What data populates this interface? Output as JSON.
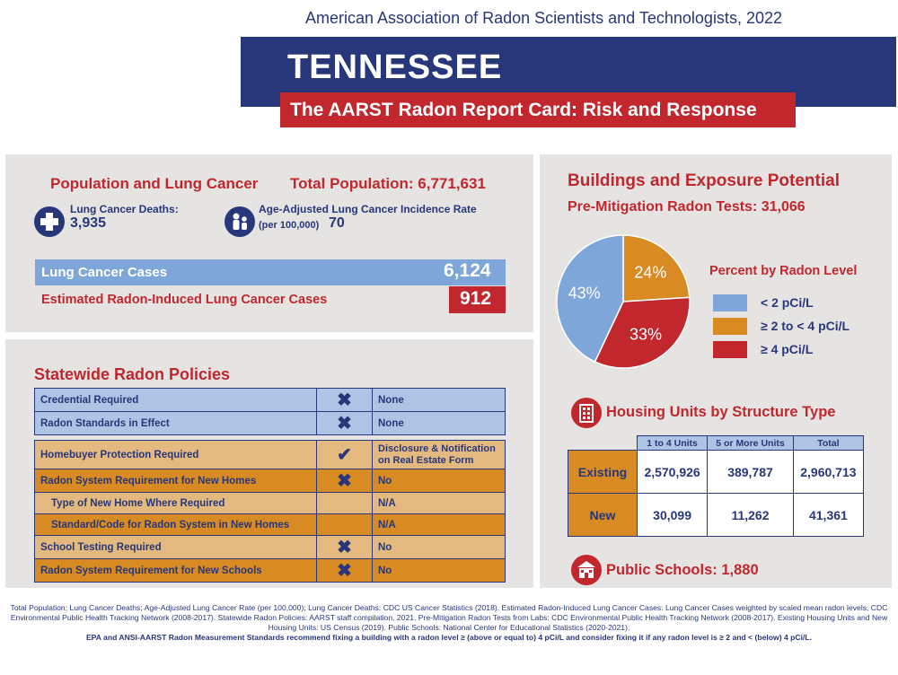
{
  "header": {
    "org": "American Association of Radon Scientists and Technologists, 2022",
    "state": "TENNESSEE",
    "subtitle": "The AARST Radon Report Card: Risk and Response"
  },
  "population": {
    "heading": "Population and Lung Cancer",
    "total_label": "Total Population: 6,771,631",
    "deaths_label": "Lung Cancer Deaths:",
    "deaths_value": "3,935",
    "incidence_label": "Age-Adjusted Lung Cancer Incidence Rate",
    "incidence_sub": "(per 100,000)",
    "incidence_value": "70",
    "cases_label": "Lung Cancer Cases",
    "cases_value": "6,124",
    "radon_cases_label": "Estimated Radon-Induced Lung Cancer Cases",
    "radon_cases_value": "912"
  },
  "policies": {
    "heading": "Statewide Radon Policies",
    "rows": [
      {
        "label": "Credential Required",
        "mark": "✖",
        "value": "None"
      },
      {
        "label": "Radon Standards in Effect",
        "mark": "✖",
        "value": "None"
      },
      {
        "label": "Homebuyer Protection Required",
        "mark": "✔",
        "value": "Disclosure & Notification on Real Estate Form"
      },
      {
        "label": "Radon System Requirement for New Homes",
        "mark": "✖",
        "value": "No"
      },
      {
        "label": "Type of New Home Where Required",
        "mark": "",
        "value": "N/A"
      },
      {
        "label": "Standard/Code for Radon System in New Homes",
        "mark": "",
        "value": "N/A"
      },
      {
        "label": "School Testing Required",
        "mark": "✖",
        "value": "No"
      },
      {
        "label": "Radon System Requirement for New Schools",
        "mark": "✖",
        "value": "No"
      }
    ]
  },
  "buildings": {
    "heading": "Buildings and Exposure Potential",
    "tests_label": "Pre-Mitigation Radon Tests: 31,066",
    "legend_title": "Percent by Radon Level",
    "housing_heading": "Housing Units by Structure Type",
    "housing_cols": [
      "1 to 4 Units",
      "5 or More Units",
      "Total"
    ],
    "housing_rows": [
      {
        "label": "Existing",
        "values": [
          "2,570,926",
          "389,787",
          "2,960,713"
        ]
      },
      {
        "label": "New",
        "values": [
          "30,099",
          "11,262",
          "41,361"
        ]
      }
    ],
    "schools_label": "Public Schools: 1,880"
  },
  "chart_data": {
    "type": "pie",
    "title": "Percent by Radon Level",
    "categories": [
      "< 2 pCi/L",
      "≥ 2 to < 4 pCi/L",
      "≥ 4 pCi/L"
    ],
    "values": [
      43,
      24,
      33
    ],
    "labels": [
      "43%",
      "24%",
      "33%"
    ],
    "colors": [
      "#7ea6d8",
      "#d88b23",
      "#c1272d"
    ]
  },
  "footer": {
    "sources": "Total Population; Lung Cancer Deaths; Age-Adjusted Lung Cancer Rate (per 100,000); Lung Cancer Deaths: CDC US Cancer Statistics (2018). Estimated Radon-Induced Lung Cancer Cases: Lung Cancer Cases weighted by scaled mean radon levels, CDC Environmental Public Health Tracking Network (2008-2017). Statewide Radon Policies: AARST staff compilation, 2021. Pre-Mitigation Radon Tests from Labs: CDC Environmental Public Health Tracking Network (2008-2017). Existing Housing Units and New Housing Units: US Census (2019). Public Schools: National Center for Educational Statistics (2020-2021).",
    "recommendation": "EPA and ANSI-AARST Radon Measurement Standards recommend fixing a building with a radon level ≥ (above or equal to) 4 pCi/L and consider fixing it if any radon level is ≥ 2 and < (below) 4 pCi/L."
  }
}
